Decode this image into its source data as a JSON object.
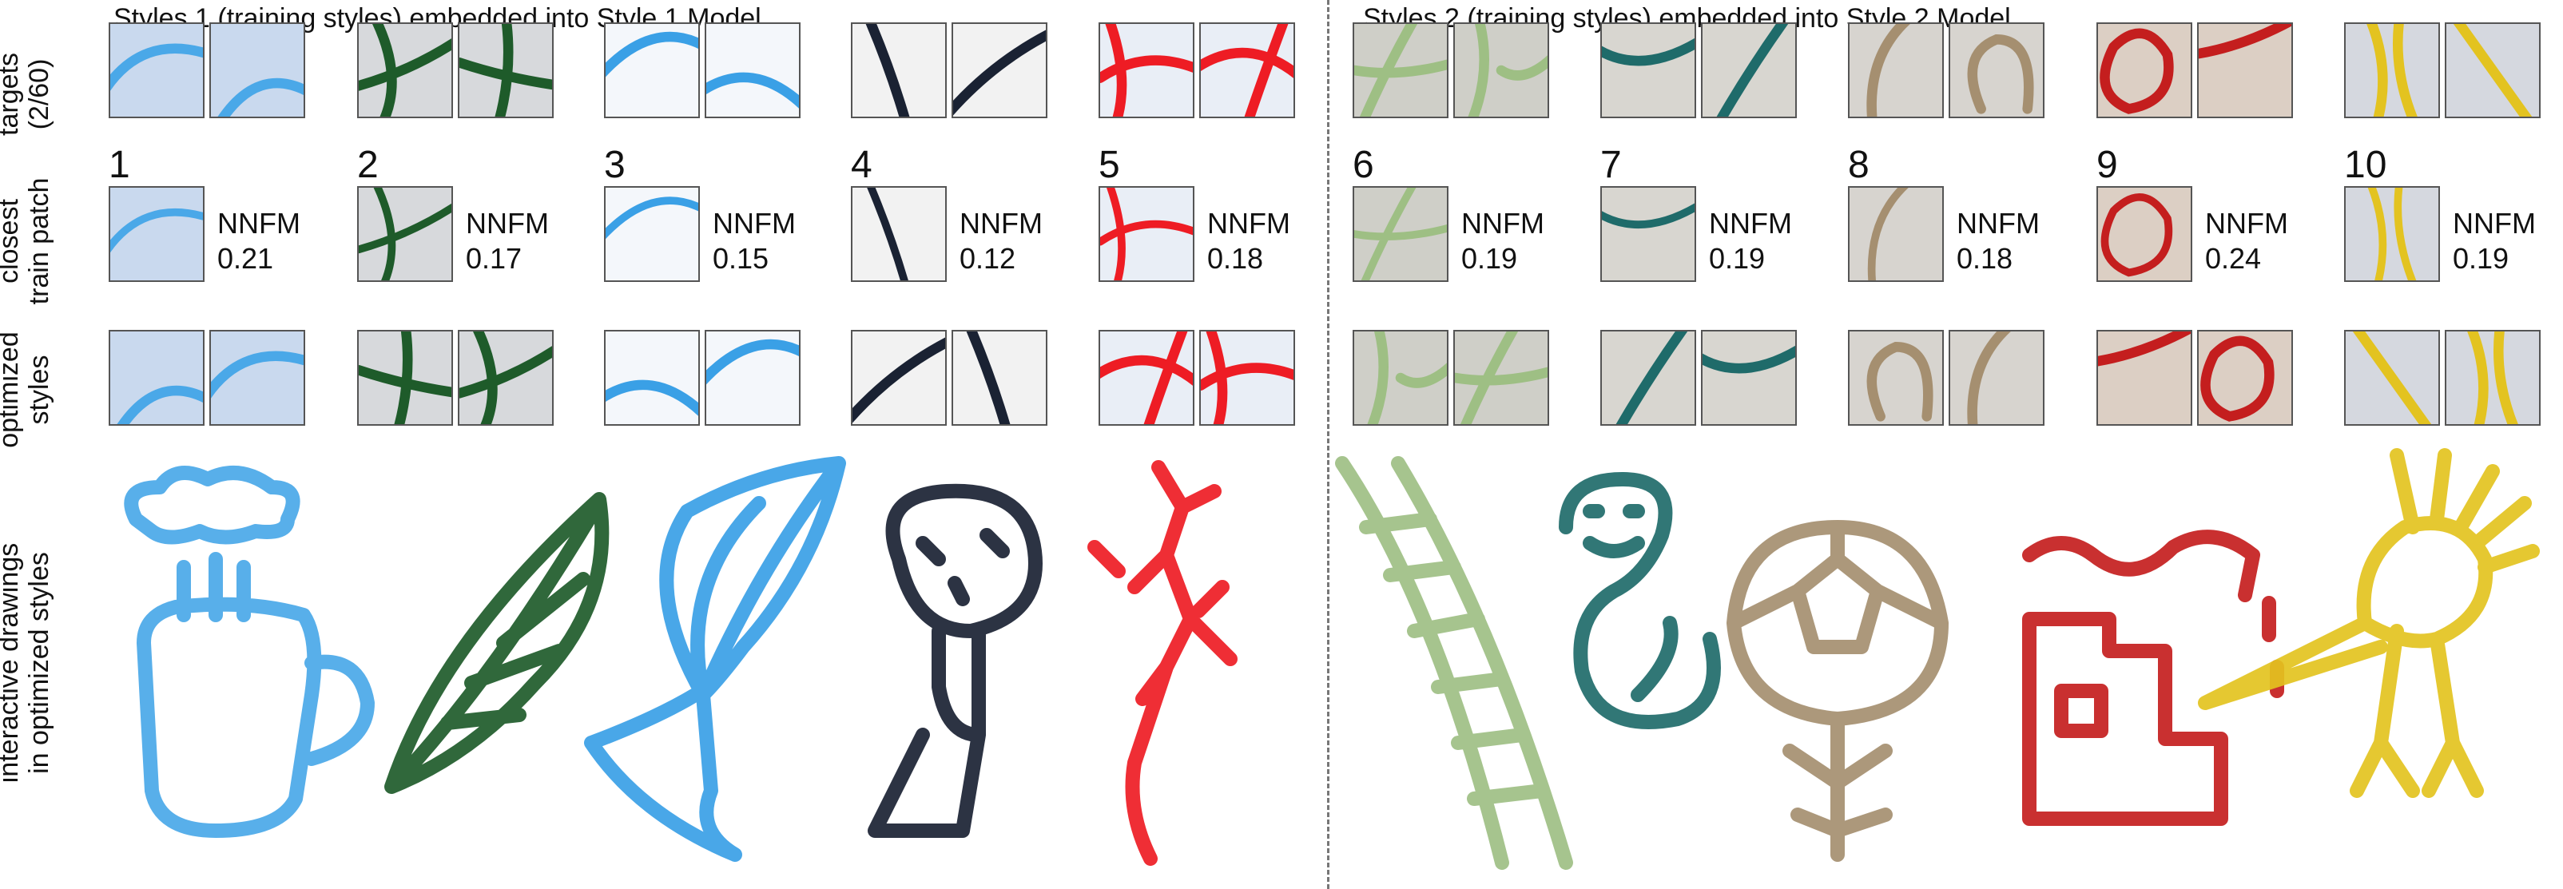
{
  "titles": {
    "left": "Styles 1 (training styles) embedded into Style 1 Model",
    "right": "Styles 2 (training styles) embedded into Style 2 Model"
  },
  "row_labels": {
    "targets": [
      "targets",
      "(2/60)"
    ],
    "closest": [
      "closest",
      "train patch"
    ],
    "optimized": [
      "optimized",
      "styles"
    ],
    "drawings": [
      "interactive drawings",
      "in optimized styles"
    ]
  },
  "metric_name": "NNFM",
  "styles": [
    {
      "number": "1",
      "nnfm": "0.21",
      "color": "#4aa8e8",
      "bg": "#c9d9ee",
      "drawing": "cup"
    },
    {
      "number": "2",
      "nnfm": "0.17",
      "color": "#1e5b2a",
      "bg": "#d7d9dc",
      "drawing": "leaf"
    },
    {
      "number": "3",
      "nnfm": "0.15",
      "color": "#3aa0e6",
      "bg": "#f4f7fb",
      "drawing": "flower-bud"
    },
    {
      "number": "4",
      "nnfm": "0.12",
      "color": "#1a2233",
      "bg": "#f2f2f2",
      "drawing": "panda"
    },
    {
      "number": "5",
      "nnfm": "0.18",
      "color": "#ee1c24",
      "bg": "#e9eef6",
      "drawing": "lizard"
    },
    {
      "number": "6",
      "nnfm": "0.19",
      "color": "#9ebf84",
      "bg": "#cfcfc8",
      "drawing": "ladder"
    },
    {
      "number": "7",
      "nnfm": "0.19",
      "color": "#1f6b6a",
      "bg": "#d8d6d0",
      "drawing": "snake"
    },
    {
      "number": "8",
      "nnfm": "0.18",
      "color": "#a58f70",
      "bg": "#d7d4cf",
      "drawing": "flower"
    },
    {
      "number": "9",
      "nnfm": "0.24",
      "color": "#c41e1e",
      "bg": "#dccfc4",
      "drawing": "house"
    },
    {
      "number": "10",
      "nnfm": "0.19",
      "color": "#e3c320",
      "bg": "#d5d8df",
      "drawing": "bird"
    }
  ]
}
